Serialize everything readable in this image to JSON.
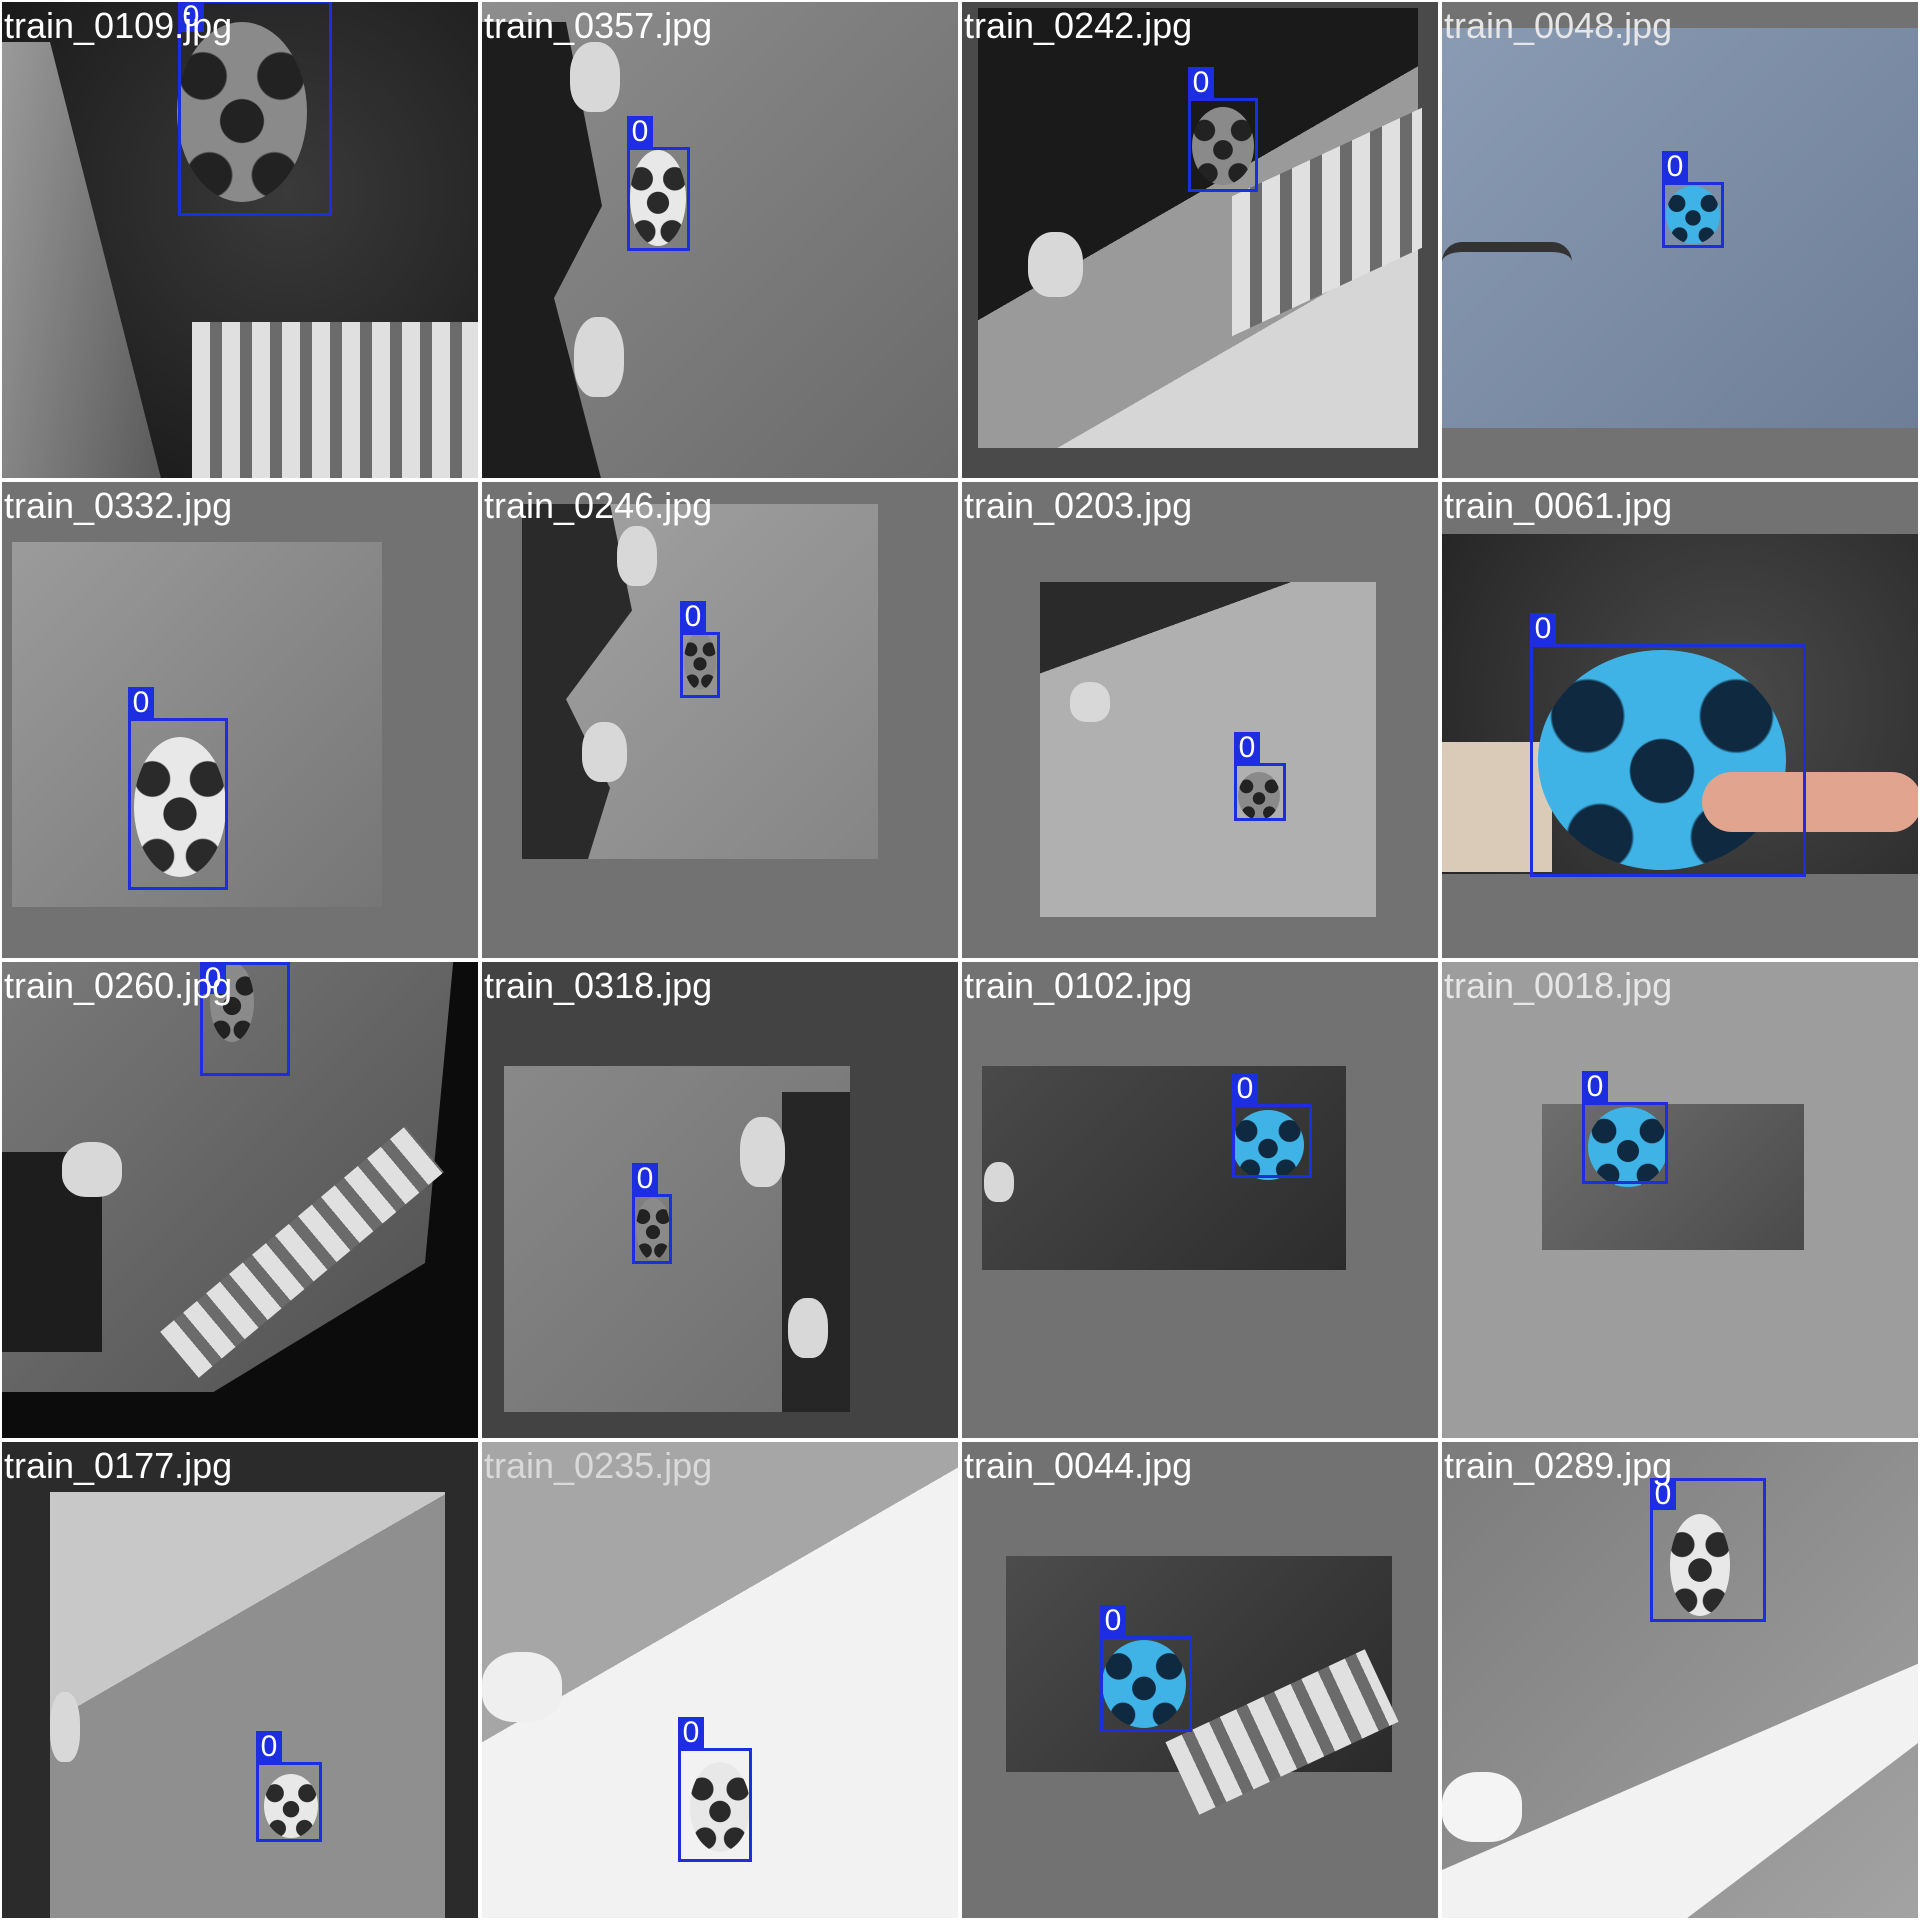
{
  "tiles": [
    {
      "filename": "train_0109.jpg",
      "label": "0"
    },
    {
      "filename": "train_0357.jpg",
      "label": "0"
    },
    {
      "filename": "train_0242.jpg",
      "label": "0"
    },
    {
      "filename": "train_0048.jpg",
      "label": "0"
    },
    {
      "filename": "train_0332.jpg",
      "label": "0"
    },
    {
      "filename": "train_0246.jpg",
      "label": "0"
    },
    {
      "filename": "train_0203.jpg",
      "label": "0"
    },
    {
      "filename": "train_0061.jpg",
      "label": "0"
    },
    {
      "filename": "train_0260.jpg",
      "label": "0"
    },
    {
      "filename": "train_0318.jpg",
      "label": "0"
    },
    {
      "filename": "train_0102.jpg",
      "label": "0"
    },
    {
      "filename": "train_0018.jpg",
      "label": "0"
    },
    {
      "filename": "train_0177.jpg",
      "label": "0"
    },
    {
      "filename": "train_0235.jpg",
      "label": "0"
    },
    {
      "filename": "train_0044.jpg",
      "label": "0"
    },
    {
      "filename": "train_0289.jpg",
      "label": "0"
    }
  ],
  "colors": {
    "bbox": "#1d2ee0",
    "padding_grey": "#727272",
    "ball_blue": "#3fb3e6"
  }
}
